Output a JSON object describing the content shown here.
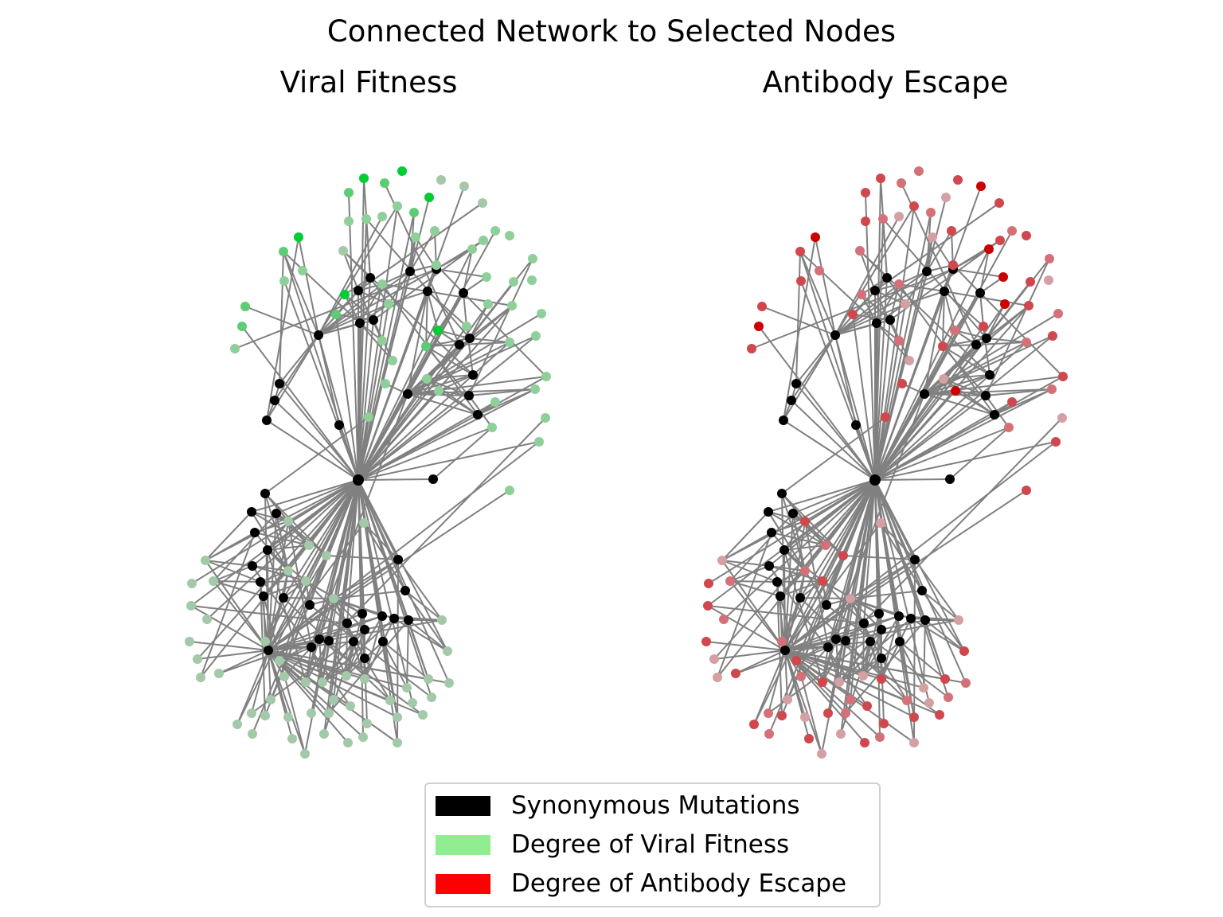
{
  "suptitle": "Connected Network to Selected Nodes",
  "panels": [
    {
      "title": "Viral Fitness"
    },
    {
      "title": "Antibody Escape"
    }
  ],
  "legend": {
    "items": [
      {
        "label": "Synonymous Mutations",
        "color": "#000000"
      },
      {
        "label": "Degree of Viral Fitness",
        "color": "#90ee90"
      },
      {
        "label": "Degree of Antibody Escape",
        "color": "#ff0000"
      }
    ]
  },
  "colors": {
    "edge": "#808080",
    "synonymous": "#000000",
    "fitness_scale": [
      "#a3c9a8",
      "#8ecf9a",
      "#5ecb75",
      "#00cc33"
    ],
    "escape_scale": [
      "#d4a0a3",
      "#d47178",
      "#d0474d",
      "#cc0000"
    ]
  },
  "network": {
    "hub_main": 0,
    "hub_left": 1,
    "hub_top": 2,
    "hub_bottom": 3,
    "node_kinds": "hubs and group members are synonymous (black); leaves carry a degree level 0-3"
  }
}
